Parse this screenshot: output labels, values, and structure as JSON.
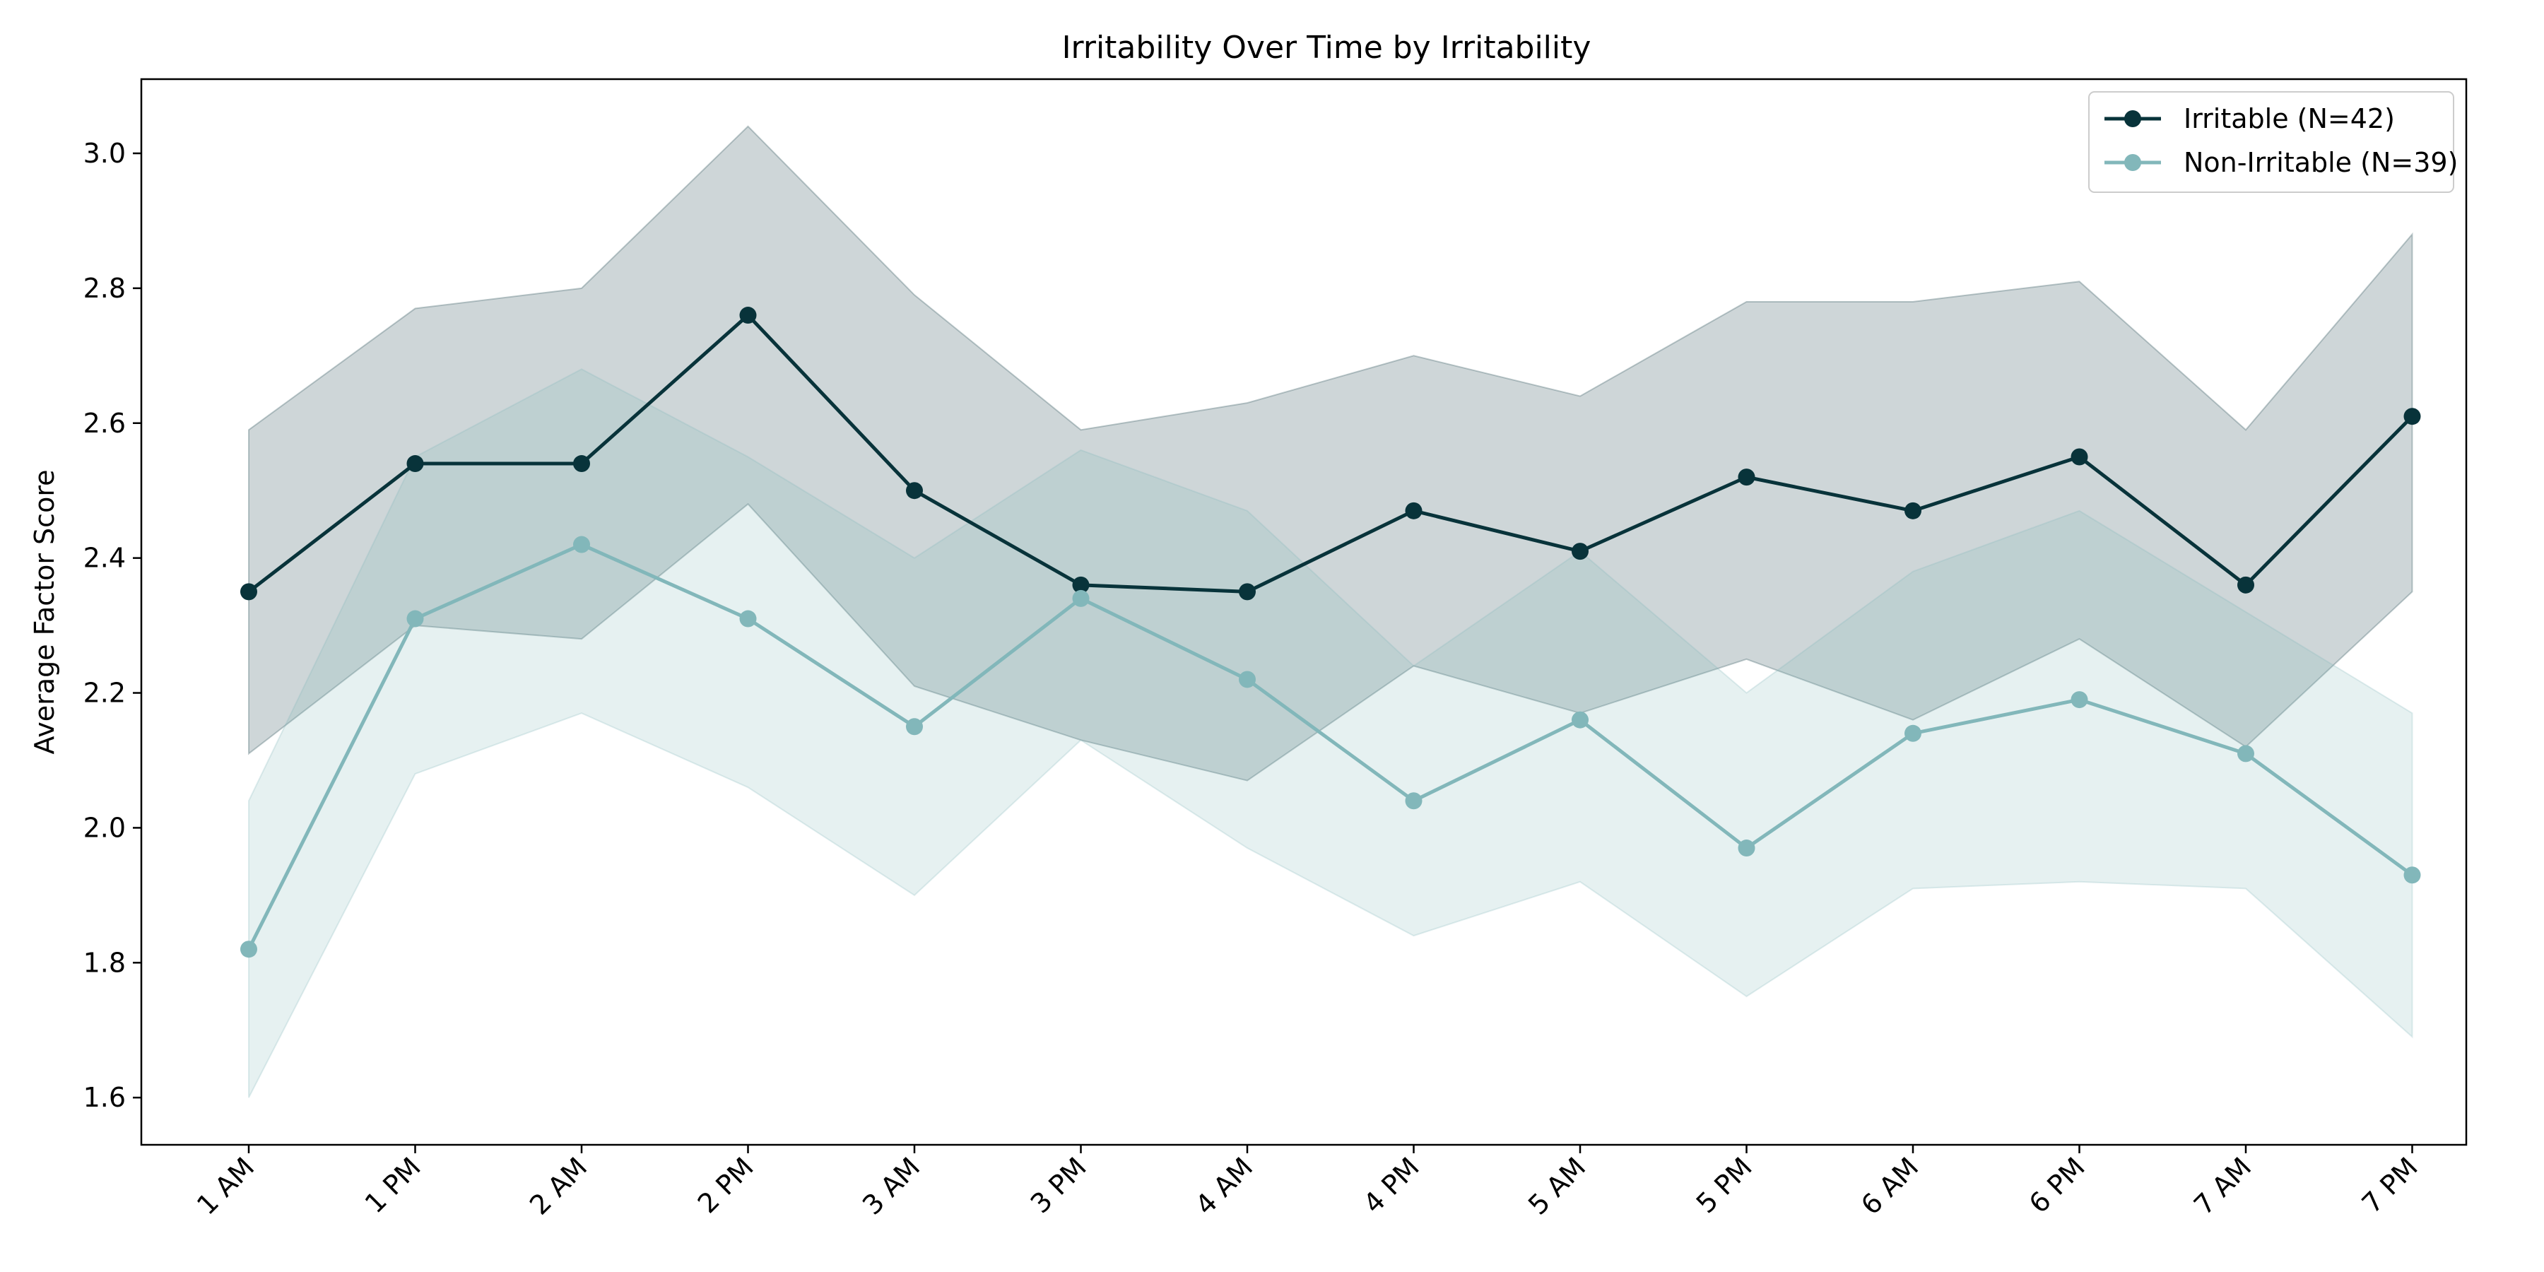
{
  "chart_data": {
    "type": "line",
    "title": "Irritability Over Time by Irritability",
    "xlabel": "",
    "ylabel": "Average Factor Score",
    "categories": [
      "1 AM",
      "1 PM",
      "2 AM",
      "2 PM",
      "3 AM",
      "3 PM",
      "4 AM",
      "4 PM",
      "5 AM",
      "5 PM",
      "6 AM",
      "6 PM",
      "7 AM",
      "7 PM"
    ],
    "ylim": [
      1.53,
      3.11
    ],
    "yticks": [
      1.6,
      1.8,
      2.0,
      2.2,
      2.4,
      2.6,
      2.8,
      3.0
    ],
    "ytick_labels": [
      "1.6",
      "1.8",
      "2.0",
      "2.2",
      "2.4",
      "2.6",
      "2.8",
      "3.0"
    ],
    "grid": false,
    "legend_position": "top-right",
    "series": [
      {
        "name": "Irritable (N=42)",
        "color": "#08333a",
        "band_opacity": 0.2,
        "values": [
          2.35,
          2.54,
          2.54,
          2.76,
          2.5,
          2.36,
          2.35,
          2.47,
          2.41,
          2.52,
          2.47,
          2.55,
          2.36,
          2.61
        ],
        "lower": [
          2.11,
          2.3,
          2.28,
          2.48,
          2.21,
          2.13,
          2.07,
          2.24,
          2.17,
          2.25,
          2.16,
          2.28,
          2.12,
          2.35
        ],
        "upper": [
          2.59,
          2.77,
          2.8,
          3.04,
          2.79,
          2.59,
          2.63,
          2.7,
          2.64,
          2.78,
          2.78,
          2.81,
          2.59,
          2.88
        ]
      },
      {
        "name": "Non-Irritable (N=39)",
        "color": "#82b7ba",
        "band_opacity": 0.2,
        "values": [
          1.82,
          2.31,
          2.42,
          2.31,
          2.15,
          2.34,
          2.22,
          2.04,
          2.16,
          1.97,
          2.14,
          2.19,
          2.11,
          1.93
        ],
        "lower": [
          1.6,
          2.08,
          2.17,
          2.06,
          1.9,
          2.13,
          1.97,
          1.84,
          1.92,
          1.75,
          1.91,
          1.92,
          1.91,
          1.69
        ],
        "upper": [
          2.04,
          2.55,
          2.68,
          2.55,
          2.4,
          2.56,
          2.47,
          2.24,
          2.41,
          2.2,
          2.38,
          2.47,
          2.32,
          2.17
        ]
      }
    ]
  }
}
